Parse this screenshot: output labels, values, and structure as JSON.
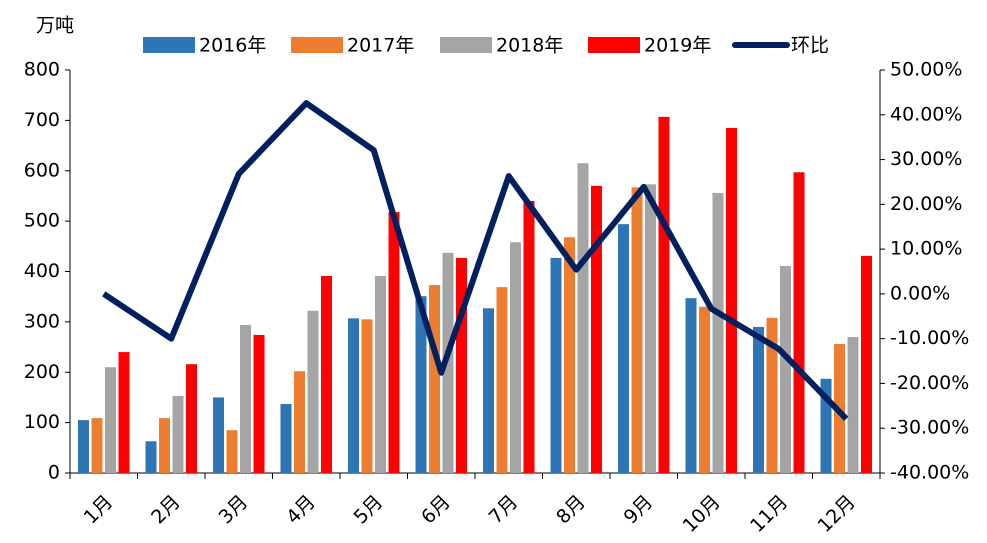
{
  "chart_data": {
    "type": "bar_line",
    "y_label": "万吨",
    "categories": [
      "1月",
      "2月",
      "3月",
      "4月",
      "5月",
      "6月",
      "7月",
      "8月",
      "9月",
      "10月",
      "11月",
      "12月"
    ],
    "series": [
      {
        "name": "2016年",
        "type": "bar",
        "color": "#2e75b6",
        "values": [
          105,
          63,
          150,
          137,
          307,
          351,
          327,
          427,
          494,
          347,
          290,
          187
        ]
      },
      {
        "name": "2017年",
        "type": "bar",
        "color": "#ed7d31",
        "values": [
          109,
          109,
          85,
          202,
          305,
          373,
          369,
          468,
          567,
          330,
          308,
          256
        ]
      },
      {
        "name": "2018年",
        "type": "bar",
        "color": "#a5a5a5",
        "values": [
          210,
          153,
          294,
          322,
          391,
          437,
          458,
          615,
          573,
          556,
          411,
          270
        ]
      },
      {
        "name": "2019年",
        "type": "bar",
        "color": "#ff0000",
        "values": [
          240,
          216,
          274,
          391,
          518,
          427,
          540,
          570,
          707,
          685,
          597,
          431
        ]
      },
      {
        "name": "环比",
        "type": "line",
        "axis": "y2",
        "color": "#002060",
        "values": [
          0,
          -10,
          26.8,
          42.6,
          32.1,
          -17.6,
          26.3,
          5.4,
          23.9,
          -3.3,
          -12.3,
          -27.9
        ]
      }
    ],
    "ylim": [
      0,
      800
    ],
    "yticks": [
      0,
      100,
      200,
      300,
      400,
      500,
      600,
      700,
      800
    ],
    "y2lim": [
      -40,
      50
    ],
    "y2ticks": [
      {
        "value": -40,
        "label": "-40.00%"
      },
      {
        "value": -30,
        "label": "-30.00%"
      },
      {
        "value": -20,
        "label": "-20.00%"
      },
      {
        "value": -10,
        "label": "-10.00%"
      },
      {
        "value": 0,
        "label": "0.00%"
      },
      {
        "value": 10,
        "label": "10.00%"
      },
      {
        "value": 20,
        "label": "20.00%"
      },
      {
        "value": 30,
        "label": "30.00%"
      },
      {
        "value": 40,
        "label": "40.00%"
      },
      {
        "value": 50,
        "label": "50.00%"
      }
    ]
  }
}
